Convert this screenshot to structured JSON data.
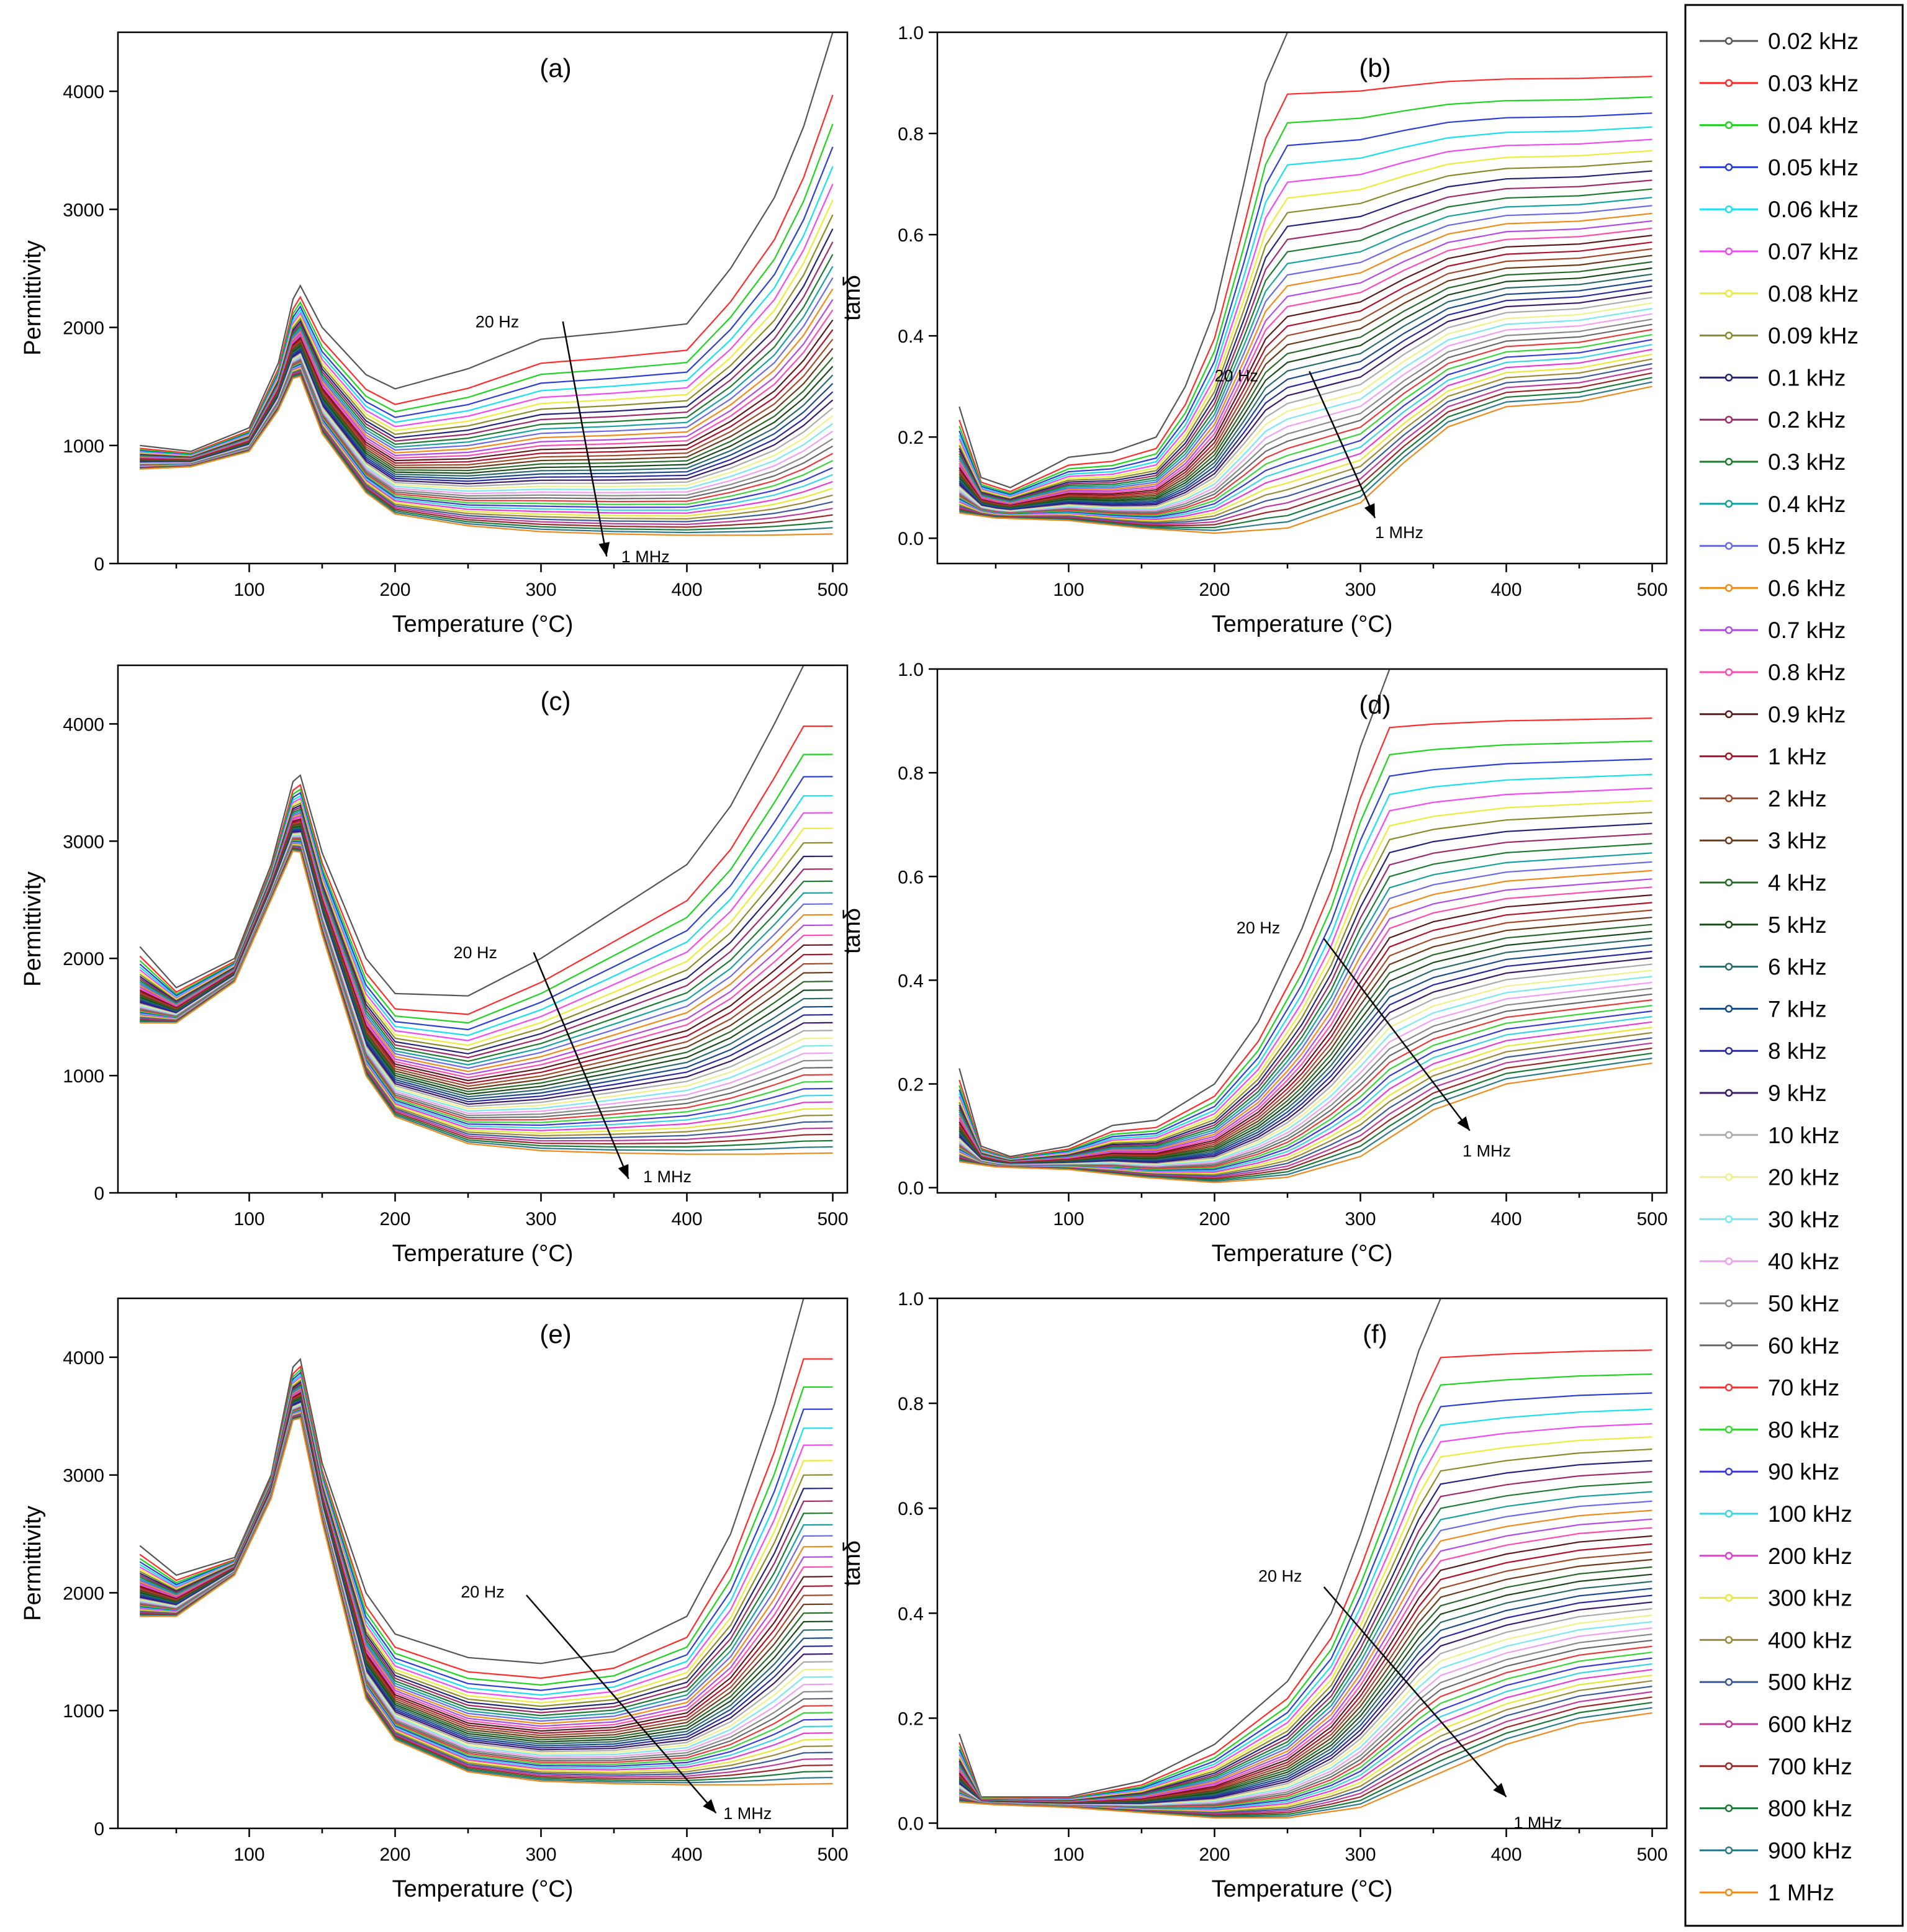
{
  "figure": {
    "legend": [
      {
        "label": "0.02 kHz",
        "color": "#555555"
      },
      {
        "label": "0.03 kHz",
        "color": "#ff2a2a"
      },
      {
        "label": "0.04 kHz",
        "color": "#1fd41f"
      },
      {
        "label": "0.05 kHz",
        "color": "#2b3fd6"
      },
      {
        "label": "0.06 kHz",
        "color": "#19e0ef"
      },
      {
        "label": "0.07 kHz",
        "color": "#f04bf0"
      },
      {
        "label": "0.08 kHz",
        "color": "#ecec3c"
      },
      {
        "label": "0.09 kHz",
        "color": "#8a8a2a"
      },
      {
        "label": "0.1 kHz",
        "color": "#23237a"
      },
      {
        "label": "0.2 kHz",
        "color": "#9e2a6a"
      },
      {
        "label": "0.3 kHz",
        "color": "#1e7a30"
      },
      {
        "label": "0.4 kHz",
        "color": "#17a0a0"
      },
      {
        "label": "0.5 kHz",
        "color": "#6a6ae8"
      },
      {
        "label": "0.6 kHz",
        "color": "#f08a1a"
      },
      {
        "label": "0.7 kHz",
        "color": "#b04be8"
      },
      {
        "label": "0.8 kHz",
        "color": "#ff4bb0"
      },
      {
        "label": "0.9 kHz",
        "color": "#5a1a1a"
      },
      {
        "label": "1 kHz",
        "color": "#b0122a"
      },
      {
        "label": "2 kHz",
        "color": "#a04a2a"
      },
      {
        "label": "3 kHz",
        "color": "#6a3a1a"
      },
      {
        "label": "4 kHz",
        "color": "#2a6a2a"
      },
      {
        "label": "5 kHz",
        "color": "#1a4a1a"
      },
      {
        "label": "6 kHz",
        "color": "#2a6a6a"
      },
      {
        "label": "7 kHz",
        "color": "#1a4a8a"
      },
      {
        "label": "8 kHz",
        "color": "#2a2aa0"
      },
      {
        "label": "9 kHz",
        "color": "#3a1a6a"
      },
      {
        "label": "10 kHz",
        "color": "#aaaaaa"
      },
      {
        "label": "20 kHz",
        "color": "#f0f08a"
      },
      {
        "label": "30 kHz",
        "color": "#7ae8f0"
      },
      {
        "label": "40 kHz",
        "color": "#f0a0f0"
      },
      {
        "label": "50 kHz",
        "color": "#8a8a8a"
      },
      {
        "label": "60 kHz",
        "color": "#6a6a6a"
      },
      {
        "label": "70 kHz",
        "color": "#e83a3a"
      },
      {
        "label": "80 kHz",
        "color": "#3ad43a"
      },
      {
        "label": "90 kHz",
        "color": "#3a3ad4"
      },
      {
        "label": "100 kHz",
        "color": "#3ad4e8"
      },
      {
        "label": "200 kHz",
        "color": "#e83ad4"
      },
      {
        "label": "300 kHz",
        "color": "#e8e83a"
      },
      {
        "label": "400 kHz",
        "color": "#9a8a3a"
      },
      {
        "label": "500 kHz",
        "color": "#3a5a9a"
      },
      {
        "label": "600 kHz",
        "color": "#c03a9a"
      },
      {
        "label": "700 kHz",
        "color": "#9a2a2a"
      },
      {
        "label": "800 kHz",
        "color": "#1a7a3a"
      },
      {
        "label": "900 kHz",
        "color": "#2a7a8a"
      },
      {
        "label": "1 MHz",
        "color": "#ee8a1e"
      }
    ]
  },
  "chart_data": [
    {
      "type": "line",
      "panel": "(a)",
      "xlabel": "Temperature (°C)",
      "ylabel": "Permittivity",
      "xlim": [
        10,
        510
      ],
      "ylim": [
        0,
        4500
      ],
      "xticks": [
        100,
        200,
        300,
        400,
        500
      ],
      "yticks": [
        0,
        1000,
        2000,
        3000,
        4000
      ],
      "annotation_start": "20 Hz",
      "annotation_end": "1 MHz",
      "top_curve": {
        "x": [
          25,
          60,
          100,
          120,
          133,
          150,
          180,
          200,
          250,
          300,
          350,
          400,
          430,
          460,
          480,
          500
        ],
        "y": [
          1000,
          950,
          1150,
          1700,
          2400,
          2000,
          1600,
          1480,
          1650,
          1900,
          1960,
          2030,
          2500,
          3100,
          3700,
          4500
        ]
      },
      "bottom_curve": {
        "x": [
          25,
          60,
          100,
          120,
          133,
          150,
          180,
          200,
          250,
          300,
          350,
          400,
          450,
          500
        ],
        "y": [
          800,
          820,
          950,
          1300,
          1650,
          1100,
          600,
          420,
          320,
          270,
          250,
          240,
          240,
          250
        ]
      }
    },
    {
      "type": "line",
      "panel": "(b)",
      "xlabel": "Temperature (°C)",
      "ylabel": "tanδ",
      "xlim": [
        10,
        510
      ],
      "ylim": [
        -0.05,
        1.0
      ],
      "xticks": [
        100,
        200,
        300,
        400,
        500
      ],
      "yticks": [
        0.0,
        0.2,
        0.4,
        0.6,
        0.8,
        1.0
      ],
      "annotation_start": "20 Hz",
      "annotation_end": "1 MHz",
      "top_curve": {
        "x": [
          25,
          40,
          60,
          100,
          130,
          160,
          180,
          200,
          220,
          235,
          250
        ],
        "y": [
          0.26,
          0.12,
          0.1,
          0.16,
          0.17,
          0.2,
          0.3,
          0.45,
          0.7,
          0.9,
          1.0
        ]
      },
      "bottom_curve": {
        "x": [
          25,
          50,
          100,
          150,
          200,
          250,
          300,
          330,
          360,
          400,
          450,
          500
        ],
        "y": [
          0.05,
          0.04,
          0.035,
          0.02,
          0.01,
          0.02,
          0.07,
          0.15,
          0.22,
          0.26,
          0.27,
          0.3
        ]
      }
    },
    {
      "type": "line",
      "panel": "(c)",
      "xlabel": "Temperature (°C)",
      "ylabel": "Permittivity",
      "xlim": [
        10,
        510
      ],
      "ylim": [
        0,
        4500
      ],
      "xticks": [
        100,
        200,
        300,
        400,
        500
      ],
      "yticks": [
        0,
        1000,
        2000,
        3000,
        4000
      ],
      "annotation_start": "20 Hz",
      "annotation_end": "1 MHz",
      "top_curve": {
        "x": [
          25,
          50,
          90,
          115,
          133,
          150,
          180,
          200,
          250,
          300,
          350,
          400,
          430,
          460,
          480
        ],
        "y": [
          2100,
          1750,
          2000,
          2800,
          3650,
          2900,
          2000,
          1700,
          1680,
          2000,
          2400,
          2800,
          3300,
          4000,
          4500
        ]
      },
      "bottom_curve": {
        "x": [
          25,
          50,
          90,
          115,
          133,
          150,
          180,
          200,
          250,
          300,
          350,
          400,
          450,
          500
        ],
        "y": [
          1450,
          1450,
          1800,
          2500,
          3000,
          2200,
          1000,
          650,
          420,
          360,
          340,
          330,
          330,
          340
        ]
      }
    },
    {
      "type": "line",
      "panel": "(d)",
      "xlabel": "Temperature (°C)",
      "ylabel": "tanδ",
      "xlim": [
        10,
        510
      ],
      "ylim": [
        -0.01,
        1.0
      ],
      "xticks": [
        100,
        200,
        300,
        400,
        500
      ],
      "yticks": [
        0.0,
        0.2,
        0.4,
        0.6,
        0.8,
        1.0
      ],
      "annotation_start": "20 Hz",
      "annotation_end": "1 MHz",
      "top_curve": {
        "x": [
          25,
          40,
          60,
          100,
          130,
          160,
          200,
          230,
          260,
          280,
          300,
          320
        ],
        "y": [
          0.23,
          0.08,
          0.06,
          0.08,
          0.12,
          0.13,
          0.2,
          0.32,
          0.5,
          0.65,
          0.85,
          1.0
        ]
      },
      "bottom_curve": {
        "x": [
          25,
          50,
          100,
          150,
          200,
          250,
          300,
          350,
          400,
          450,
          500
        ],
        "y": [
          0.05,
          0.04,
          0.035,
          0.02,
          0.01,
          0.02,
          0.06,
          0.15,
          0.2,
          0.22,
          0.24
        ]
      }
    },
    {
      "type": "line",
      "panel": "(e)",
      "xlabel": "Temperature (°C)",
      "ylabel": "Permittivity",
      "xlim": [
        10,
        510
      ],
      "ylim": [
        0,
        4500
      ],
      "xticks": [
        100,
        200,
        300,
        400,
        500
      ],
      "yticks": [
        0,
        1000,
        2000,
        3000,
        4000
      ],
      "annotation_start": "20 Hz",
      "annotation_end": "1 MHz",
      "top_curve": {
        "x": [
          25,
          50,
          90,
          115,
          133,
          150,
          180,
          200,
          250,
          300,
          350,
          400,
          430,
          460,
          480
        ],
        "y": [
          2400,
          2150,
          2300,
          3000,
          4100,
          3100,
          2000,
          1650,
          1450,
          1400,
          1500,
          1800,
          2500,
          3600,
          4500
        ]
      },
      "bottom_curve": {
        "x": [
          25,
          50,
          90,
          115,
          133,
          150,
          180,
          200,
          250,
          300,
          350,
          400,
          450,
          500
        ],
        "y": [
          1800,
          1800,
          2150,
          2800,
          3600,
          2600,
          1100,
          750,
          480,
          400,
          380,
          370,
          370,
          380
        ]
      }
    },
    {
      "type": "line",
      "panel": "(f)",
      "xlabel": "Temperature (°C)",
      "ylabel": "tanδ",
      "xlim": [
        10,
        510
      ],
      "ylim": [
        -0.01,
        1.0
      ],
      "xticks": [
        100,
        200,
        300,
        400,
        500
      ],
      "yticks": [
        0.0,
        0.2,
        0.4,
        0.6,
        0.8,
        1.0
      ],
      "annotation_start": "20 Hz",
      "annotation_end": "1 MHz",
      "top_curve": {
        "x": [
          25,
          40,
          60,
          100,
          150,
          200,
          250,
          280,
          300,
          320,
          340,
          355
        ],
        "y": [
          0.17,
          0.05,
          0.05,
          0.05,
          0.08,
          0.15,
          0.27,
          0.4,
          0.55,
          0.72,
          0.9,
          1.0
        ]
      },
      "bottom_curve": {
        "x": [
          25,
          50,
          100,
          150,
          200,
          250,
          300,
          350,
          400,
          450,
          500
        ],
        "y": [
          0.04,
          0.035,
          0.03,
          0.02,
          0.01,
          0.01,
          0.03,
          0.09,
          0.15,
          0.19,
          0.21
        ]
      }
    }
  ]
}
